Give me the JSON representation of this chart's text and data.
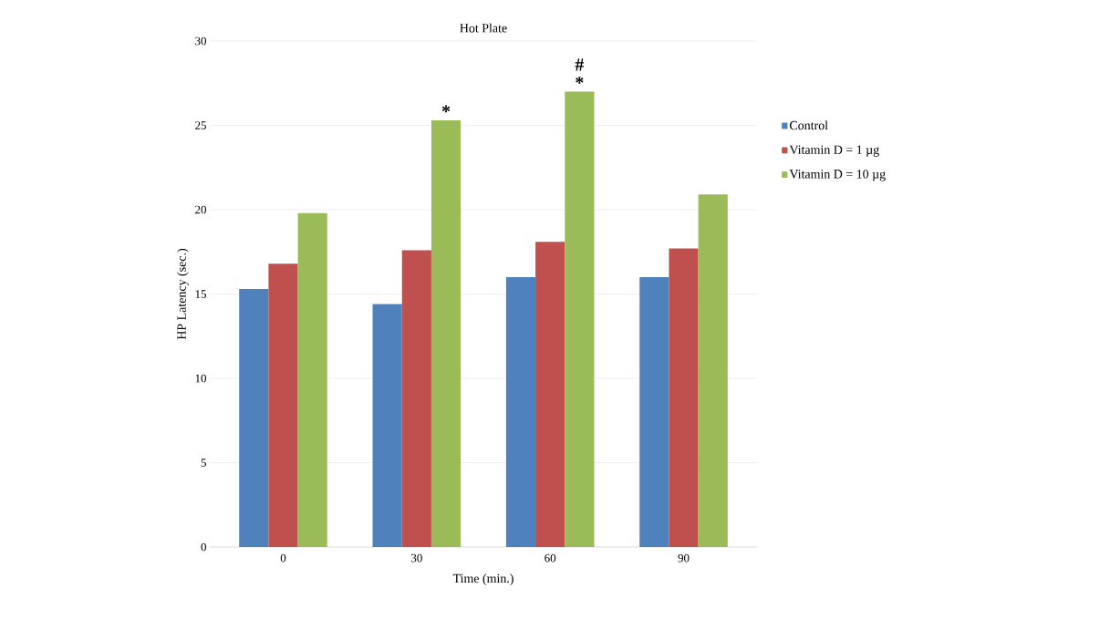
{
  "chart_data": {
    "type": "bar",
    "title": "Hot Plate",
    "xlabel": "Time (min.)",
    "ylabel": "HP Latency  (sec.)",
    "categories": [
      "0",
      "30",
      "60",
      "90"
    ],
    "series": [
      {
        "name": "Control",
        "color": "#4f81bd",
        "values": [
          15.3,
          14.4,
          16.0,
          16.0
        ]
      },
      {
        "name": "Vitamin D = 1 µg",
        "color": "#c0504d",
        "values": [
          16.8,
          17.6,
          18.1,
          17.7
        ]
      },
      {
        "name": "Vitamin D = 10 µg",
        "color": "#9bbb59",
        "values": [
          19.8,
          25.3,
          27.0,
          20.9
        ]
      }
    ],
    "ylim": [
      0,
      30
    ],
    "yticks": [
      0,
      5,
      10,
      15,
      20,
      25,
      30
    ],
    "grid": "y",
    "legend": "right",
    "annotations": [
      "*",
      "*",
      "#"
    ]
  }
}
